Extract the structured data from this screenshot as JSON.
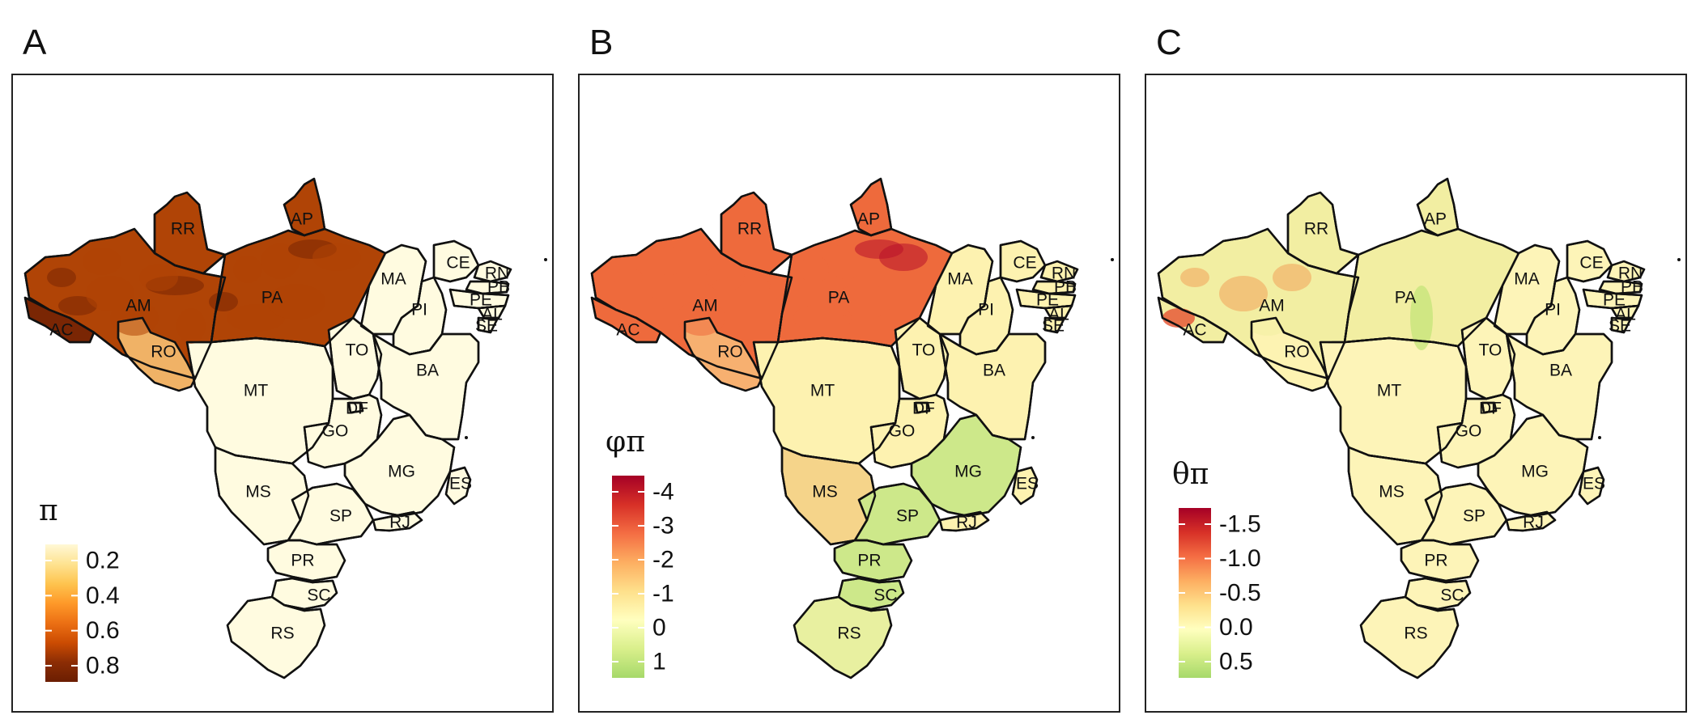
{
  "panels": [
    {
      "letter": "A",
      "legend_title": "π",
      "legend_colors": [
        "#fff8d6",
        "#fee391",
        "#fec44f",
        "#fe9929",
        "#ec7014",
        "#cc4c02",
        "#8c2d04",
        "#6b1e02"
      ],
      "legend_ticks": [
        "0.2",
        "0.4",
        "0.6",
        "0.8"
      ],
      "north_region_color": "#b04406",
      "north_region_dark": "#7a2604",
      "ac_ro_color": "#f0b266",
      "rest_color": "#fffbe0"
    },
    {
      "letter": "B",
      "legend_title": "φπ",
      "legend_colors": [
        "#a50026",
        "#d73027",
        "#f46d43",
        "#fdae61",
        "#fee08b",
        "#ffffbf",
        "#d9ef8b",
        "#a6d96a"
      ],
      "legend_ticks": [
        "-4",
        "-3",
        "-2",
        "-1",
        "0",
        "1"
      ],
      "north_region_color": "#ee6a3c",
      "north_region_dark": "#b8102a",
      "ac_ro_color": "#f7b070",
      "rest_color": "#fdf2b0",
      "south_color": "#cde88a"
    },
    {
      "letter": "C",
      "legend_title": "θπ",
      "legend_colors": [
        "#a50026",
        "#d73027",
        "#f46d43",
        "#fdae61",
        "#fee08b",
        "#ffffbf",
        "#d9ef8b",
        "#a6d96a"
      ],
      "legend_ticks": [
        "-1.5",
        "-1.0",
        "-0.5",
        "0.0",
        "0.5"
      ],
      "north_region_color": "#f2eea2",
      "north_region_dark": "#f3a25a",
      "ac_ro_color": "#fdf3b2",
      "rest_color": "#fdf4b8"
    }
  ],
  "states": [
    "RR",
    "AP",
    "AM",
    "PA",
    "MA",
    "CE",
    "RN",
    "PB",
    "PE",
    "AL",
    "SE",
    "PI",
    "AC",
    "RO",
    "TO",
    "MT",
    "BA",
    "GO",
    "DF",
    "MG",
    "ES",
    "MS",
    "SP",
    "RJ",
    "PR",
    "SC",
    "RS"
  ]
}
